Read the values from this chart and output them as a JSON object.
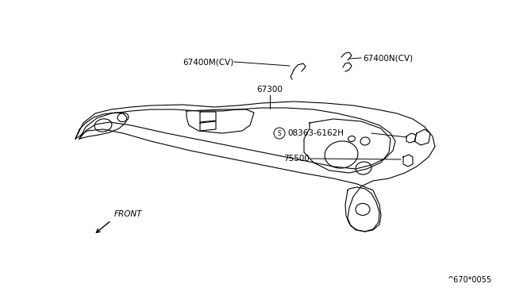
{
  "bg_color": "#ffffff",
  "diagram_code": "^670*0055",
  "labels": {
    "67400M_CV": "67400M(CV)",
    "67400N_CV": "67400N(CV)",
    "67300": "67300",
    "08363_label": "08363-6162H",
    "75500": "75500",
    "front": "FRONT"
  },
  "text_color": "#000000",
  "line_color": "#000000",
  "font_size_labels": 7.5,
  "font_size_code": 7
}
